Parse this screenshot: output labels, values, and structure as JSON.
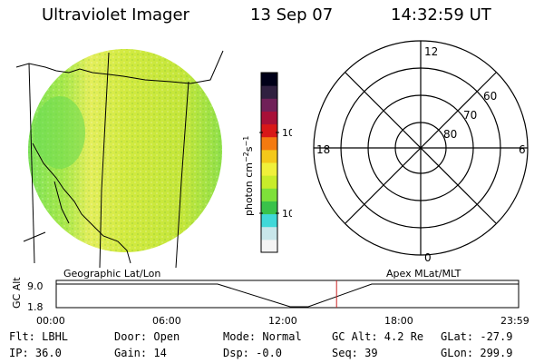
{
  "header": {
    "title": "Ultraviolet Imager",
    "date": "13 Sep 07",
    "time": "14:32:59 UT"
  },
  "image_panel": {
    "label": "Geographic Lat/Lon",
    "colors": {
      "low": "#7ee35a",
      "mid": "#cbe834",
      "high": "#e6ee58"
    }
  },
  "colorbar": {
    "unit_label": "photon cm",
    "unit_exp1": "−2",
    "unit_mid": "s",
    "unit_exp2": "−1",
    "tick_100": "100",
    "tick_10": "10",
    "colors": [
      "#f4f4f4",
      "#c8e6ea",
      "#40d8d8",
      "#39c24a",
      "#7ee03a",
      "#c8ec2a",
      "#f0f03a",
      "#f4c81a",
      "#f47a10",
      "#d81818",
      "#a81038",
      "#702058",
      "#302040",
      "#000018"
    ]
  },
  "polar_plot": {
    "label": "Apex MLat/MLT",
    "mlt_labels": {
      "top": "12",
      "left": "18",
      "right": "6",
      "bottom": "0"
    },
    "mlat_labels": [
      "60",
      "70",
      "80"
    ]
  },
  "altitude_plot": {
    "ylabel": "GC Alt",
    "y_ticks": [
      "9.0",
      "1.8"
    ],
    "x_ticks": [
      "00:00",
      "06:00",
      "12:00",
      "18:00",
      "23:59"
    ],
    "marker_color": "#cc2222",
    "marker_time_frac": 0.6063
  },
  "footer": {
    "flt": "Flt: LBHL",
    "ip": "IP: 36.0",
    "door": "Door: Open",
    "gain": "Gain: 14",
    "mode": "Mode: Normal",
    "dsp": "Dsp:   -0.0",
    "gc_alt": "GC Alt: 4.2 Re",
    "seq": "Seq: 39",
    "glat": "GLat: -27.9",
    "glon": "GLon: 299.9"
  }
}
